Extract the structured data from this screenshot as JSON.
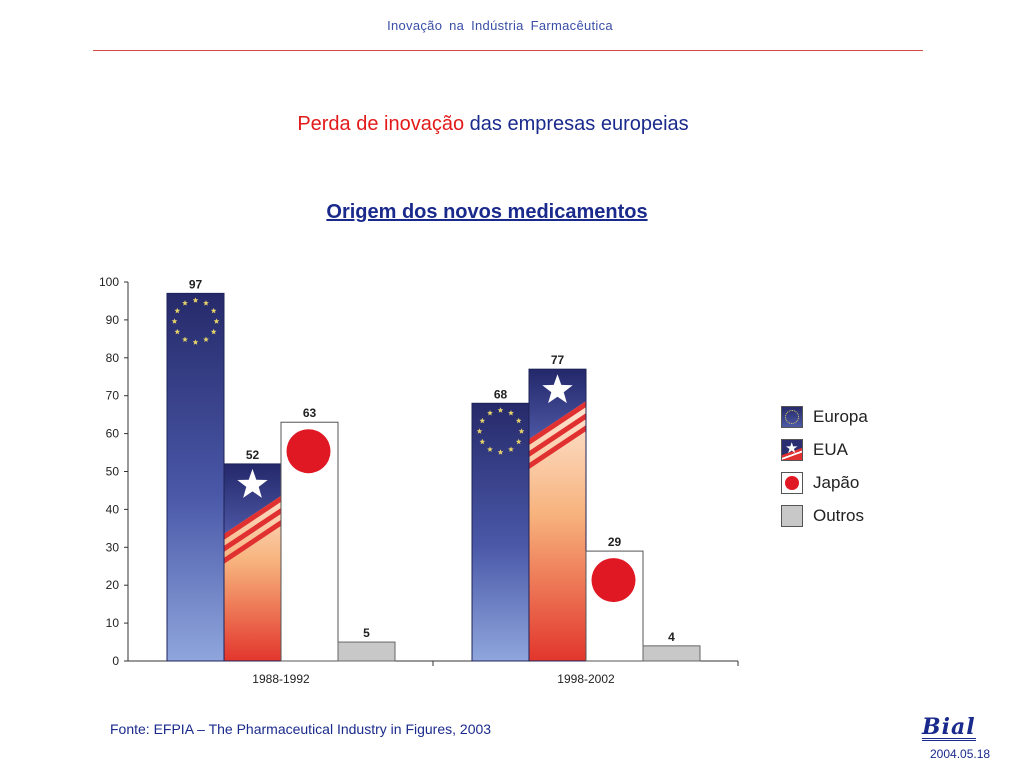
{
  "header": {
    "title": "Inovação  na  Indústria  Farmacêutica"
  },
  "slide": {
    "title_red": "Perda de inovação",
    "title_blue": " das empresas europeias",
    "chart_title": "Origem dos novos medicamentos"
  },
  "chart_data": {
    "type": "bar",
    "title": "Origem dos novos medicamentos",
    "categories": [
      "1988-1992",
      "1998-2002"
    ],
    "series": [
      {
        "name": "Europa",
        "values": [
          97,
          68
        ]
      },
      {
        "name": "EUA",
        "values": [
          52,
          77
        ]
      },
      {
        "name": "Japão",
        "values": [
          63,
          29
        ]
      },
      {
        "name": "Outros",
        "values": [
          5,
          4
        ]
      }
    ],
    "ylim": [
      0,
      100
    ],
    "yticks": [
      0,
      10,
      20,
      30,
      40,
      50,
      60,
      70,
      80,
      90,
      100
    ],
    "grid": false,
    "legend_position": "right"
  },
  "legend": {
    "items": [
      {
        "label": "Europa",
        "swatch": "europa"
      },
      {
        "label": "EUA",
        "swatch": "eua"
      },
      {
        "label": "Japão",
        "swatch": "japao"
      },
      {
        "label": "Outros",
        "swatch": "outros"
      }
    ]
  },
  "footer": {
    "source": "Fonte: EFPIA – The Pharmaceutical Industry in Figures, 2003",
    "logo": "Bial",
    "date": "2004.05.18"
  },
  "colors": {
    "europa_top": "#262a6a",
    "europa_bottom": "#8fa6dc",
    "eua_stripe": "#e03030",
    "japao_dot": "#e01824",
    "outros": "#c8c8c8",
    "star_gold": "#e6d36a"
  }
}
